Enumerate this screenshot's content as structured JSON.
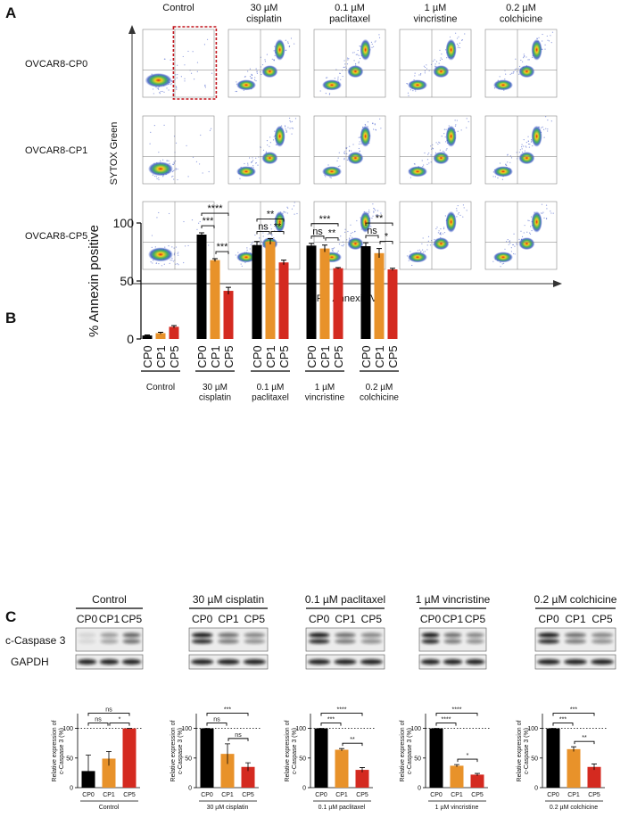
{
  "panel_labels": [
    "A",
    "B",
    "C"
  ],
  "flow": {
    "columns": [
      "Control",
      "30 µM\ncisplatin",
      "0.1 µM\npaclitaxel",
      "1 µM\nvincristine",
      "0.2 µM\ncolchicine"
    ],
    "rows": [
      "OVCAR8-CP0",
      "OVCAR8-CP1",
      "OVCAR8-CP5"
    ],
    "y_label": "SYTOX Green",
    "x_label": "APC Annexin V"
  },
  "chart_data": [
    {
      "type": "grouped-bar",
      "y_label": "% Annexin positive",
      "categories": [
        "Control",
        "30 µM\ncisplatin",
        "0.1 µM\npaclitaxel",
        "1 µM\nvincristine",
        "0.2 µM\ncolchicine"
      ],
      "series": [
        {
          "name": "CP0",
          "color": "#000000",
          "values": [
            3,
            90,
            81,
            80.5,
            80
          ],
          "errors": [
            0.5,
            1.5,
            3,
            2,
            3
          ]
        },
        {
          "name": "CP1",
          "color": "#e8922a",
          "values": [
            5,
            68,
            84,
            78,
            74
          ],
          "errors": [
            0.8,
            1.2,
            2.5,
            3,
            4
          ]
        },
        {
          "name": "CP5",
          "color": "#d42a20",
          "values": [
            10.5,
            41.5,
            66,
            61,
            60
          ],
          "errors": [
            1,
            3,
            2,
            0.5,
            1
          ]
        }
      ],
      "ylim": [
        0,
        100
      ],
      "yticks": [
        0,
        50,
        100
      ],
      "significance": [
        [],
        [
          "****",
          "***",
          "***"
        ],
        [
          "**",
          "ns",
          "**"
        ],
        [
          "***",
          "ns",
          "**"
        ],
        [
          "**",
          "ns",
          "*"
        ]
      ]
    },
    {
      "type": "bar",
      "title": "Control",
      "y_label": "Relative expression of\nc-Caspase 3 (%)",
      "categories": [
        "CP0",
        "CP1",
        "CP5"
      ],
      "colors": [
        "#000000",
        "#e8922a",
        "#d42a20"
      ],
      "values": [
        28,
        49,
        100
      ],
      "errors": [
        27,
        12,
        0
      ],
      "ylim": [
        0,
        125
      ],
      "yticks": [
        0,
        50,
        100
      ],
      "reference_line": 100,
      "significance": [
        "ns",
        "ns",
        "*"
      ]
    },
    {
      "type": "bar",
      "title": "30 µM cisplatin",
      "y_label": "Relative expression of\nc-Caspase 3 (%)",
      "categories": [
        "CP0",
        "CP1",
        "CP5"
      ],
      "colors": [
        "#000000",
        "#e8922a",
        "#d42a20"
      ],
      "values": [
        100,
        57,
        35
      ],
      "errors": [
        0,
        17,
        7
      ],
      "ylim": [
        0,
        125
      ],
      "yticks": [
        0,
        50,
        100
      ],
      "reference_line": 100,
      "significance": [
        "***",
        "ns",
        "ns"
      ]
    },
    {
      "type": "bar",
      "title": "0.1 µM paclitaxel",
      "y_label": "Relative expression of\nc-Caspase 3 (%)",
      "categories": [
        "CP0",
        "CP1",
        "CP5"
      ],
      "colors": [
        "#000000",
        "#e8922a",
        "#d42a20"
      ],
      "values": [
        100,
        64,
        30
      ],
      "errors": [
        0,
        2,
        4
      ],
      "ylim": [
        0,
        125
      ],
      "yticks": [
        0,
        50,
        100
      ],
      "reference_line": 100,
      "significance": [
        "****",
        "***",
        "**"
      ]
    },
    {
      "type": "bar",
      "title": "1 µM vincristine",
      "y_label": "Relative expression of\nc-Caspase 3 (%)",
      "categories": [
        "CP0",
        "CP1",
        "CP5"
      ],
      "colors": [
        "#000000",
        "#e8922a",
        "#d42a20"
      ],
      "values": [
        100,
        37,
        22
      ],
      "errors": [
        0,
        2,
        2
      ],
      "ylim": [
        0,
        125
      ],
      "yticks": [
        0,
        50,
        100
      ],
      "reference_line": 100,
      "significance": [
        "****",
        "****",
        "*"
      ]
    },
    {
      "type": "bar",
      "title": "0.2 µM colchicine",
      "y_label": "Relative expression of\nc-Caspase 3 (%)",
      "categories": [
        "CP0",
        "CP1",
        "CP5"
      ],
      "colors": [
        "#000000",
        "#e8922a",
        "#d42a20"
      ],
      "values": [
        100,
        65,
        35
      ],
      "errors": [
        0,
        4,
        5
      ],
      "ylim": [
        0,
        125
      ],
      "yticks": [
        0,
        50,
        100
      ],
      "reference_line": 100,
      "significance": [
        "***",
        "***",
        "**"
      ]
    }
  ],
  "blot": {
    "rows": [
      "c-Caspase 3",
      "GAPDH"
    ]
  }
}
